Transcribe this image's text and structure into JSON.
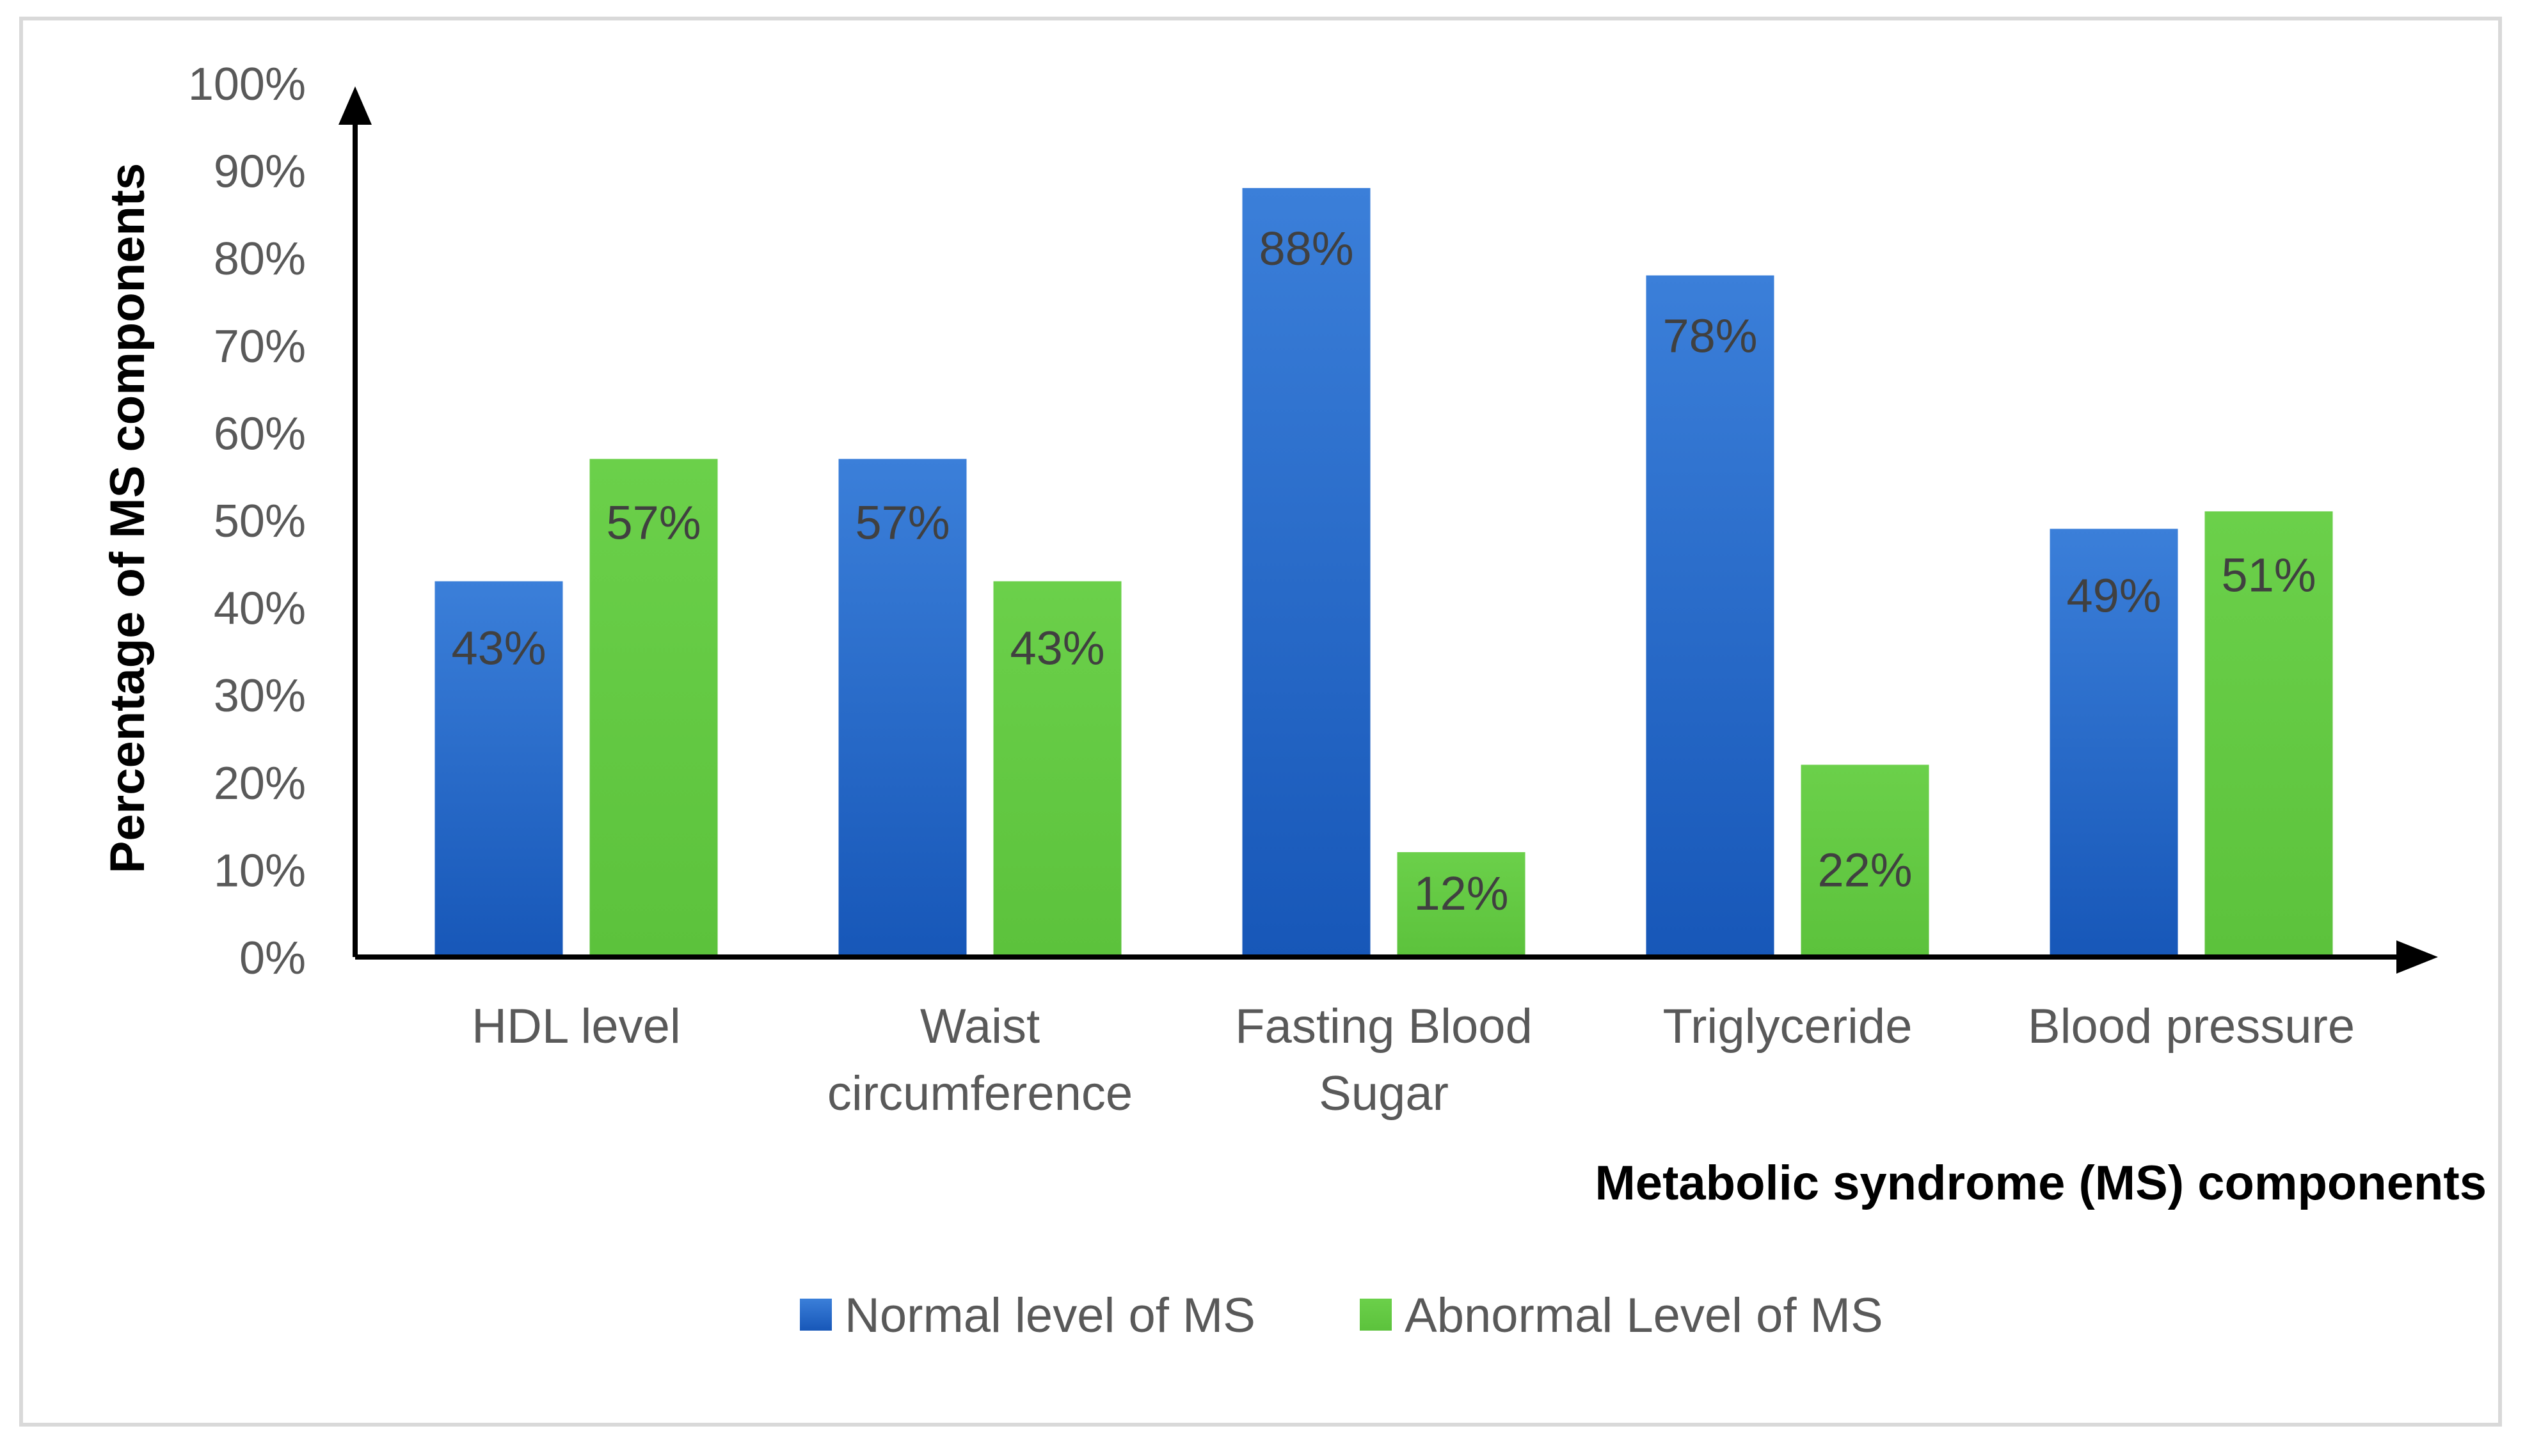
{
  "chart_data": {
    "type": "bar",
    "title": "",
    "xlabel": "Metabolic syndrome (MS) components",
    "ylabel": "Percentage of MS components",
    "ylim": [
      0,
      100
    ],
    "yticks": [
      "0%",
      "10%",
      "20%",
      "30%",
      "40%",
      "50%",
      "60%",
      "70%",
      "80%",
      "90%",
      "100%"
    ],
    "categories": [
      [
        "HDL level"
      ],
      [
        "Waist",
        "circumference"
      ],
      [
        "Fasting Blood",
        "Sugar"
      ],
      [
        "Triglyceride"
      ],
      [
        "Blood pressure"
      ]
    ],
    "series": [
      {
        "name": "Normal level of MS",
        "color": "#2e6fd0",
        "values": [
          43,
          57,
          88,
          78,
          49
        ],
        "labels": [
          "43%",
          "57%",
          "88%",
          "78%",
          "49%"
        ]
      },
      {
        "name": "Abnormal Level of MS",
        "color": "#66cc44",
        "values": [
          57,
          43,
          12,
          22,
          51
        ],
        "labels": [
          "57%",
          "43%",
          "12%",
          "22%",
          "51%"
        ]
      }
    ],
    "legend_position": "bottom",
    "grid": false
  }
}
